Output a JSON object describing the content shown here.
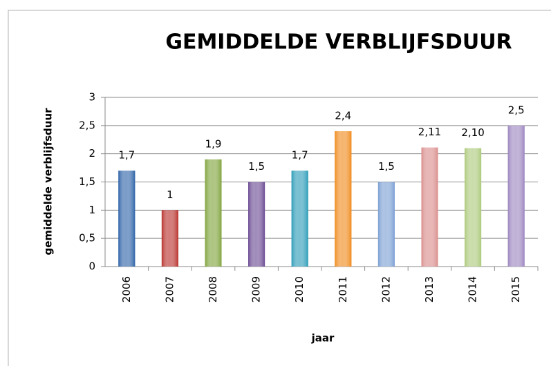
{
  "chart_data": {
    "type": "bar",
    "title": "GEMIDDELDE VERBLIJFSDUUR",
    "x_label": "jaar",
    "y_label": "gemiddelde verblijfsduur",
    "categories": [
      "2006",
      "2007",
      "2008",
      "2009",
      "2010",
      "2011",
      "2012",
      "2013",
      "2014",
      "2015"
    ],
    "values": [
      1.7,
      1,
      1.9,
      1.5,
      1.7,
      2.4,
      1.5,
      2.11,
      2.1,
      2.5
    ],
    "value_labels": [
      "1,7",
      "1",
      "1,9",
      "1,5",
      "1,7",
      "2,4",
      "1,5",
      "2,11",
      "2,10",
      "2,5"
    ],
    "colors": [
      "#2e63a8",
      "#b8302c",
      "#7ea33a",
      "#6a4a93",
      "#2a9bb8",
      "#f08a1c",
      "#7b9fd4",
      "#d98b8a",
      "#acc97a",
      "#9c86c0"
    ],
    "ylim": [
      0,
      3
    ],
    "yticks": [
      0,
      {
        "value": 0.5,
        "label": "0,5"
      },
      1,
      {
        "value": 1.5,
        "label": "1,5"
      },
      2,
      {
        "value": 2.5,
        "label": "2,5"
      },
      3
    ],
    "grid": true
  }
}
